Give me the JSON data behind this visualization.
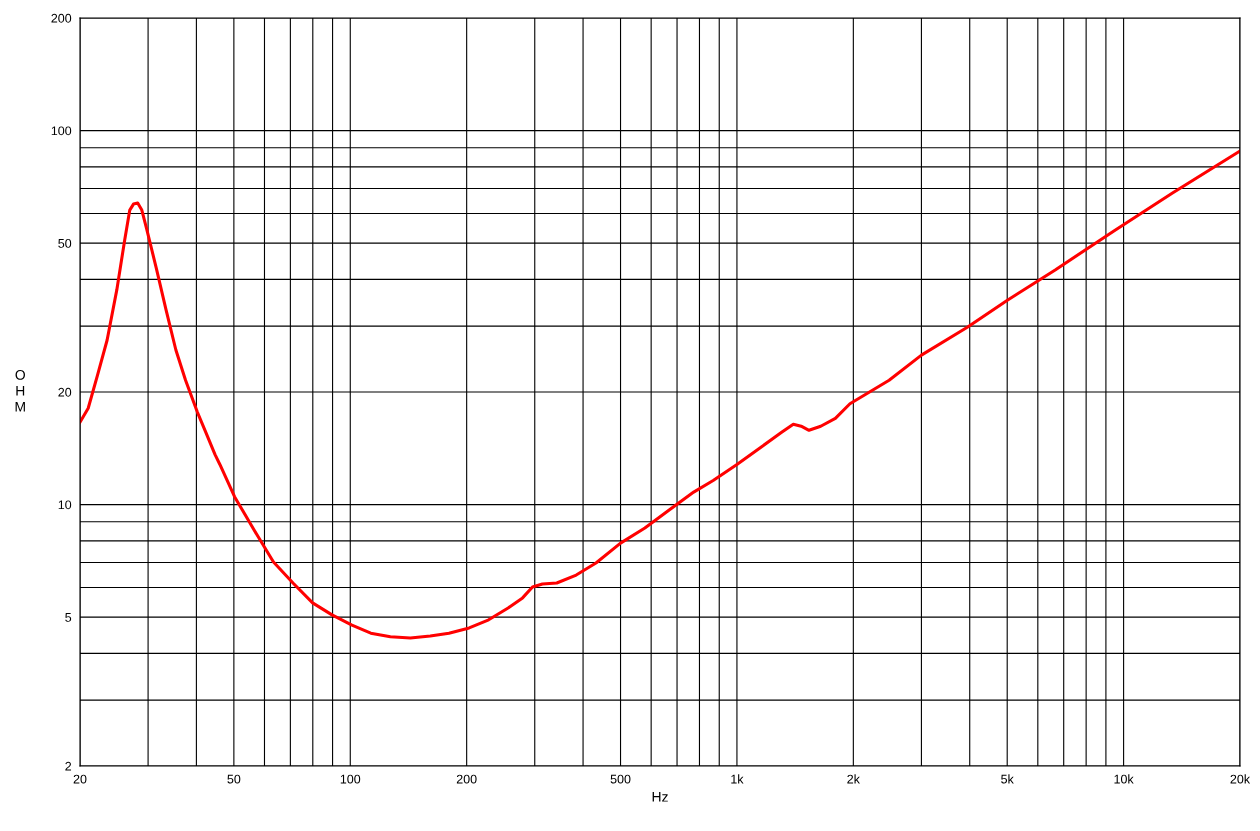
{
  "chart_data": {
    "type": "line",
    "xlabel": "Hz",
    "ylabel": "OHM",
    "log": "xy",
    "grid": true,
    "marker": "none",
    "line_style": "solid",
    "xlim": [
      20,
      20000
    ],
    "ylim": [
      2,
      200
    ],
    "xticks": [
      20,
      {
        "value": 30,
        "label": null
      },
      {
        "value": 40,
        "label": null
      },
      50,
      {
        "value": 60,
        "label": null
      },
      {
        "value": 70,
        "label": null
      },
      {
        "value": 80,
        "label": null
      },
      {
        "value": 90,
        "label": null
      },
      100,
      200,
      {
        "value": 300,
        "label": null
      },
      {
        "value": 400,
        "label": null
      },
      500,
      {
        "value": 600,
        "label": null
      },
      {
        "value": 700,
        "label": null
      },
      {
        "value": 800,
        "label": null
      },
      {
        "value": 900,
        "label": null
      },
      {
        "value": 1000,
        "label": "1k"
      },
      {
        "value": 2000,
        "label": "2k"
      },
      {
        "value": 3000,
        "label": null
      },
      {
        "value": 4000,
        "label": null
      },
      {
        "value": 5000,
        "label": "5k"
      },
      {
        "value": 6000,
        "label": null
      },
      {
        "value": 7000,
        "label": null
      },
      {
        "value": 8000,
        "label": null
      },
      {
        "value": 9000,
        "label": null
      },
      {
        "value": 10000,
        "label": "10k"
      },
      {
        "value": 20000,
        "label": "20k"
      }
    ],
    "yticks": [
      2,
      {
        "value": 3,
        "label": null
      },
      {
        "value": 4,
        "label": null
      },
      5,
      {
        "value": 6,
        "label": null
      },
      {
        "value": 7,
        "label": null
      },
      {
        "value": 8,
        "label": null
      },
      {
        "value": 9,
        "label": null
      },
      10,
      20,
      {
        "value": 30,
        "label": null
      },
      {
        "value": 40,
        "label": null
      },
      50,
      {
        "value": 60,
        "label": null
      },
      {
        "value": 70,
        "label": null
      },
      {
        "value": 80,
        "label": null
      },
      {
        "value": 90,
        "label": null
      },
      100,
      200
    ],
    "series": [
      {
        "color": "#ff0000",
        "x": [
          20,
          21.0,
          22.2,
          23.5,
          24.9,
          26.1,
          26.9,
          27.5,
          28.2,
          28.9,
          29.7,
          31.5,
          33.4,
          35.4,
          37.5,
          40.2,
          42.1,
          44.7,
          46.0,
          50.2,
          56.4,
          63.3,
          71.1,
          79.9,
          89.7,
          101,
          113,
          127,
          143,
          161,
          180,
          203,
          228,
          256,
          279,
          296,
          314,
          342,
          384,
          432,
          500,
          578,
          668,
          773,
          868,
          1000,
          1161,
          1305,
          1399,
          1466,
          1536,
          1647,
          1797,
          1960,
          2475,
          3000,
          3943,
          5005,
          6654,
          9438,
          13380,
          20000
        ],
        "values": [
          16.6,
          18.1,
          22.2,
          27.5,
          37.5,
          51,
          61.3,
          63.6,
          64.0,
          61.3,
          54.9,
          42.9,
          33.1,
          25.9,
          21.5,
          17.7,
          15.8,
          13.6,
          12.8,
          10.5,
          8.55,
          7.02,
          6.17,
          5.46,
          5.07,
          4.76,
          4.53,
          4.43,
          4.4,
          4.45,
          4.53,
          4.68,
          4.92,
          5.29,
          5.63,
          6.02,
          6.13,
          6.17,
          6.48,
          6.98,
          7.89,
          8.66,
          9.67,
          10.8,
          11.6,
          12.8,
          14.3,
          15.6,
          16.4,
          16.2,
          15.8,
          16.2,
          17.0,
          18.6,
          21.5,
          25.1,
          29.8,
          35.2,
          42.4,
          53.9,
          68.1,
          88.2
        ]
      }
    ]
  }
}
